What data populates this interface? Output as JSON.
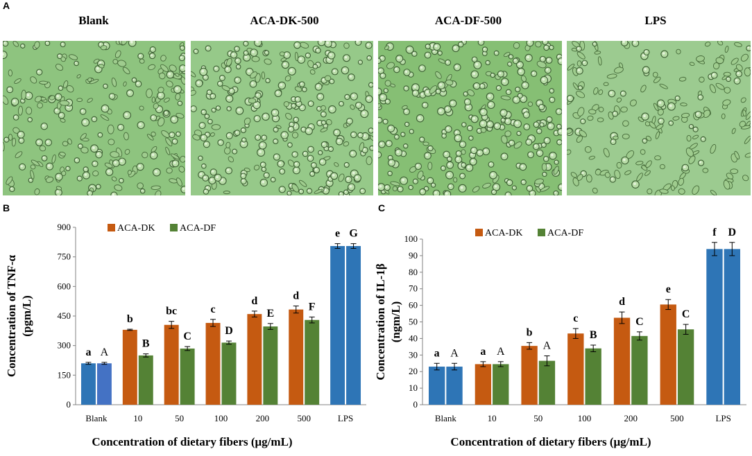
{
  "figure": {
    "panel_labels": [
      "A",
      "B",
      "C"
    ],
    "micrographs": [
      {
        "title": "Blank",
        "description": "light microscopy, clustered cells"
      },
      {
        "title": "ACA-DK-500",
        "description": "light microscopy, round cells"
      },
      {
        "title": "ACA-DF-500",
        "description": "light microscopy, round cells"
      },
      {
        "title": "LPS",
        "description": "light microscopy, spread cells"
      }
    ],
    "colors": {
      "dk": "#C55A11",
      "df": "#548235",
      "blank_lps": "#2E75B6",
      "blank_lps_alt": "#4472C4",
      "micro_bg": "#8DC37E"
    }
  },
  "chart_data": [
    {
      "type": "bar",
      "panel": "B",
      "categories": [
        "Blank",
        "10",
        "50",
        "100",
        "200",
        "500",
        "LPS"
      ],
      "series": [
        {
          "name": "ACA-DK",
          "values": [
            210,
            380,
            405,
            415,
            460,
            483,
            805
          ],
          "errors": [
            5,
            3,
            18,
            18,
            15,
            18,
            12
          ],
          "letters": [
            "a",
            "b",
            "bc",
            "c",
            "d",
            "d",
            "e"
          ]
        },
        {
          "name": "ACA-DF",
          "values": [
            210,
            250,
            285,
            315,
            397,
            430,
            805
          ],
          "errors": [
            5,
            8,
            10,
            8,
            15,
            15,
            12
          ],
          "letters": [
            "A",
            "B",
            "C",
            "D",
            "E",
            "F",
            "G"
          ]
        }
      ],
      "legend": [
        "ACA-DK",
        "ACA-DF"
      ],
      "ylabel_line1": "Concentration of TNF-α",
      "ylabel_line2": "(pgm/L)",
      "xlabel": "Concentration of dietary fibers (μg/mL)",
      "ylim": [
        0,
        900
      ],
      "yticks": [
        "0",
        "150",
        "300",
        "450",
        "600",
        "750",
        "900"
      ]
    },
    {
      "type": "bar",
      "panel": "C",
      "categories": [
        "Blank",
        "10",
        "50",
        "100",
        "200",
        "500",
        "LPS"
      ],
      "series": [
        {
          "name": "ACA-DK",
          "values": [
            23,
            24.5,
            35.5,
            43,
            52.5,
            60.5,
            94
          ],
          "errors": [
            2,
            1.5,
            2,
            3,
            3.5,
            3,
            4
          ],
          "letters": [
            "a",
            "a",
            "b",
            "c",
            "d",
            "e",
            "f"
          ]
        },
        {
          "name": "ACA-DF",
          "values": [
            23,
            24.5,
            26.5,
            34,
            41.5,
            45.5,
            94
          ],
          "errors": [
            2,
            1.5,
            3,
            2,
            2.5,
            3,
            4
          ],
          "letters": [
            "A",
            "A",
            "A",
            "B",
            "C",
            "C",
            "D"
          ]
        }
      ],
      "legend": [
        "ACA-DK",
        "ACA-DF"
      ],
      "ylabel_line1": "Concentration of IL-1β",
      "ylabel_line2": "(ngm/L)",
      "xlabel": "Concentration of dietary fibers (μg/mL)",
      "ylim": [
        0,
        100
      ],
      "yticks": [
        "0",
        "10",
        "20",
        "30",
        "40",
        "50",
        "60",
        "70",
        "80",
        "90",
        "100"
      ]
    }
  ]
}
